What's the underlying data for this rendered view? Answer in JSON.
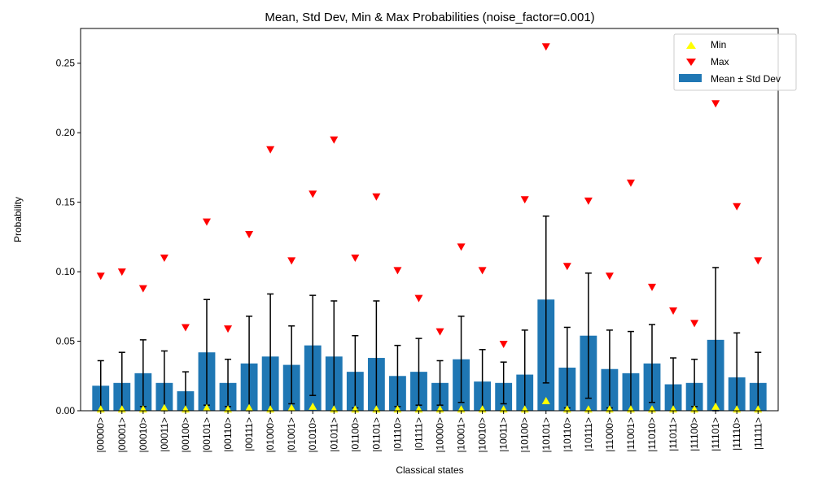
{
  "chart_data": {
    "type": "bar",
    "title": "Mean, Std Dev, Min & Max Probabilities (noise_factor=0.001)",
    "xlabel": "Classical states",
    "ylabel": "Probability",
    "ylim": [
      0,
      0.275
    ],
    "yticks": [
      "0.00",
      "0.05",
      "0.10",
      "0.15",
      "0.20",
      "0.25"
    ],
    "grid": false,
    "legend": {
      "placement": "top-right",
      "entries": [
        {
          "label": "Min",
          "marker": "triangle-up",
          "color": "#ffff00"
        },
        {
          "label": "Max",
          "marker": "triangle-down",
          "color": "#ff0000"
        },
        {
          "label": "Mean ± Std Dev",
          "marker": "bar",
          "color": "#1f77b4"
        }
      ]
    },
    "categories": [
      "|00000>",
      "|00001>",
      "|00010>",
      "|00011>",
      "|00100>",
      "|00101>",
      "|00110>",
      "|00111>",
      "|01000>",
      "|01001>",
      "|01010>",
      "|01011>",
      "|01100>",
      "|01101>",
      "|01110>",
      "|01111>",
      "|10000>",
      "|10001>",
      "|10010>",
      "|10011>",
      "|10100>",
      "|10101>",
      "|10110>",
      "|10111>",
      "|11000>",
      "|11001>",
      "|11010>",
      "|11011>",
      "|11100>",
      "|11101>",
      "|11110>",
      "|11111>"
    ],
    "series": [
      {
        "name": "Mean ± Std Dev",
        "stat": "mean",
        "values": [
          0.018,
          0.02,
          0.027,
          0.02,
          0.014,
          0.042,
          0.02,
          0.034,
          0.039,
          0.033,
          0.047,
          0.039,
          0.028,
          0.038,
          0.025,
          0.028,
          0.02,
          0.037,
          0.021,
          0.02,
          0.026,
          0.08,
          0.031,
          0.054,
          0.03,
          0.027,
          0.034,
          0.019,
          0.02,
          0.051,
          0.024,
          0.02
        ]
      },
      {
        "name": "Std Dev",
        "stat": "std",
        "values": [
          0.018,
          0.022,
          0.024,
          0.023,
          0.014,
          0.038,
          0.017,
          0.034,
          0.045,
          0.028,
          0.036,
          0.04,
          0.026,
          0.041,
          0.022,
          0.024,
          0.016,
          0.031,
          0.023,
          0.015,
          0.032,
          0.06,
          0.029,
          0.045,
          0.028,
          0.03,
          0.028,
          0.019,
          0.017,
          0.052,
          0.032,
          0.022
        ]
      },
      {
        "name": "Min",
        "stat": "min",
        "values": [
          0.001,
          0.001,
          0.001,
          0.002,
          0.001,
          0.002,
          0.001,
          0.002,
          0.001,
          0.002,
          0.003,
          0.001,
          0.001,
          0.001,
          0.001,
          0.001,
          0.001,
          0.001,
          0.001,
          0.001,
          0.001,
          0.007,
          0.001,
          0.001,
          0.001,
          0.001,
          0.001,
          0.001,
          0.001,
          0.003,
          0.001,
          0.001
        ]
      },
      {
        "name": "Max",
        "stat": "max",
        "values": [
          0.097,
          0.1,
          0.088,
          0.11,
          0.06,
          0.136,
          0.059,
          0.127,
          0.188,
          0.108,
          0.156,
          0.195,
          0.11,
          0.154,
          0.101,
          0.081,
          0.057,
          0.118,
          0.101,
          0.048,
          0.152,
          0.262,
          0.104,
          0.151,
          0.097,
          0.164,
          0.089,
          0.072,
          0.063,
          0.221,
          0.147,
          0.108
        ]
      }
    ],
    "colors": {
      "bar": "#1f77b4",
      "min": "#ffff00",
      "max": "#ff0000",
      "errorbar": "#000000"
    }
  }
}
